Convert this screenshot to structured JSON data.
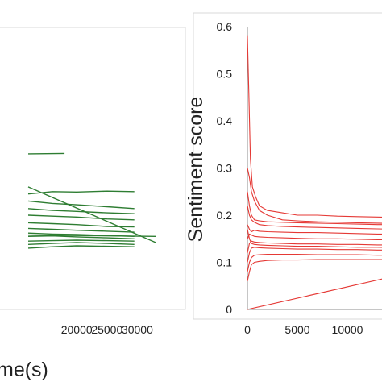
{
  "chart_data": [
    {
      "type": "line",
      "title": "",
      "xlabel": "me(s)",
      "ylabel": "",
      "xlim": [
        12000,
        33000
      ],
      "ylim": [
        0,
        0.6
      ],
      "x_ticks": [
        "20000",
        "25000",
        "30000"
      ],
      "grid": false,
      "color": "#2e7d32",
      "series": [
        {
          "x": [
            12000,
            18000
          ],
          "values": [
            0.33,
            0.331
          ]
        },
        {
          "x": [
            12000,
            16000,
            20000,
            25000,
            29500
          ],
          "values": [
            0.245,
            0.25,
            0.249,
            0.251,
            0.25
          ]
        },
        {
          "x": [
            12000,
            16000,
            20000,
            25000,
            29500
          ],
          "values": [
            0.23,
            0.225,
            0.222,
            0.218,
            0.214
          ]
        },
        {
          "x": [
            12000,
            16000,
            20000,
            25000,
            29500
          ],
          "values": [
            0.214,
            0.21,
            0.208,
            0.205,
            0.203
          ]
        },
        {
          "x": [
            12000,
            16000,
            20000,
            25000,
            29500
          ],
          "values": [
            0.2,
            0.198,
            0.196,
            0.192,
            0.19
          ]
        },
        {
          "x": [
            12000,
            16000,
            20000,
            25000,
            29500
          ],
          "values": [
            0.184,
            0.182,
            0.18,
            0.176,
            0.175
          ]
        },
        {
          "x": [
            12000,
            16000,
            20000,
            25000,
            29500
          ],
          "values": [
            0.172,
            0.17,
            0.168,
            0.166,
            0.164
          ]
        },
        {
          "x": [
            12000,
            16000,
            20000,
            25000,
            29500
          ],
          "values": [
            0.162,
            0.16,
            0.159,
            0.157,
            0.155
          ]
        },
        {
          "x": [
            12000,
            16000,
            20000,
            25000,
            29500
          ],
          "values": [
            0.155,
            0.156,
            0.154,
            0.152,
            0.15
          ]
        },
        {
          "x": [
            12000,
            16000,
            20000,
            25000,
            29500
          ],
          "values": [
            0.145,
            0.146,
            0.147,
            0.146,
            0.145
          ]
        },
        {
          "x": [
            12000,
            16000,
            20000,
            25000,
            29500
          ],
          "values": [
            0.138,
            0.14,
            0.142,
            0.14,
            0.138
          ]
        },
        {
          "x": [
            12000,
            16000,
            20000,
            25000,
            29500
          ],
          "values": [
            0.13,
            0.133,
            0.135,
            0.134,
            0.133
          ]
        },
        {
          "x": [
            12000,
            33000
          ],
          "values": [
            0.26,
            0.142
          ]
        },
        {
          "x": [
            12000,
            33000
          ],
          "values": [
            0.158,
            0.155
          ]
        }
      ]
    },
    {
      "type": "line",
      "title": "",
      "xlabel": "",
      "ylabel": "Sentiment score",
      "xlim": [
        0,
        15000
      ],
      "ylim": [
        0,
        0.6
      ],
      "x_ticks": [
        "0",
        "5000",
        "10000"
      ],
      "y_ticks": [
        "0",
        "0.1",
        "0.2",
        "0.3",
        "0.4",
        "0.5",
        "0.6"
      ],
      "grid": false,
      "color": "#e53935",
      "series": [
        {
          "x": [
            0,
            150,
            300,
            500,
            800,
            1200,
            2000,
            3500,
            5000,
            7000,
            9000,
            11000,
            13000,
            15000
          ],
          "values": [
            0.58,
            0.45,
            0.32,
            0.26,
            0.24,
            0.22,
            0.21,
            0.205,
            0.2,
            0.2,
            0.198,
            0.197,
            0.196,
            0.195
          ]
        },
        {
          "x": [
            0,
            200,
            400,
            700,
            1200,
            2000,
            3500,
            5000,
            7000,
            9000,
            11000,
            13000,
            15000
          ],
          "values": [
            0.3,
            0.28,
            0.25,
            0.23,
            0.21,
            0.2,
            0.19,
            0.188,
            0.186,
            0.185,
            0.184,
            0.183,
            0.182
          ]
        },
        {
          "x": [
            0,
            200,
            400,
            700,
            1200,
            2000,
            3500,
            5000,
            7000,
            9000,
            11000,
            13000,
            15000
          ],
          "values": [
            0.22,
            0.2,
            0.19,
            0.185,
            0.18,
            0.178,
            0.176,
            0.175,
            0.174,
            0.173,
            0.172,
            0.171,
            0.17
          ]
        },
        {
          "x": [
            0,
            200,
            400,
            700,
            1200,
            2000,
            3500,
            5000,
            7000,
            9000,
            11000,
            13000,
            15000
          ],
          "values": [
            0.18,
            0.17,
            0.165,
            0.168,
            0.166,
            0.165,
            0.164,
            0.163,
            0.163,
            0.162,
            0.161,
            0.16,
            0.16
          ]
        },
        {
          "x": [
            0,
            200,
            400,
            700,
            1200,
            2000,
            3500,
            5000,
            7000,
            9000,
            11000,
            13000,
            15000
          ],
          "values": [
            0.15,
            0.16,
            0.158,
            0.155,
            0.154,
            0.153,
            0.152,
            0.151,
            0.15,
            0.15,
            0.149,
            0.148,
            0.148
          ]
        },
        {
          "x": [
            0,
            200,
            400,
            700,
            1200,
            2000,
            3500,
            5000,
            7000,
            9000,
            11000,
            13000,
            15000
          ],
          "values": [
            0.12,
            0.14,
            0.145,
            0.143,
            0.142,
            0.141,
            0.14,
            0.139,
            0.139,
            0.138,
            0.138,
            0.137,
            0.137
          ]
        },
        {
          "x": [
            0,
            200,
            400,
            700,
            1200,
            2000,
            3500,
            5000,
            7000,
            9000,
            11000,
            13000,
            15000
          ],
          "values": [
            0.1,
            0.12,
            0.13,
            0.132,
            0.131,
            0.13,
            0.129,
            0.128,
            0.128,
            0.127,
            0.127,
            0.126,
            0.126
          ]
        },
        {
          "x": [
            0,
            200,
            400,
            700,
            1200,
            2000,
            3500,
            5000,
            7000,
            9000,
            11000,
            13000,
            15000
          ],
          "values": [
            0.08,
            0.1,
            0.11,
            0.115,
            0.116,
            0.117,
            0.117,
            0.117,
            0.116,
            0.116,
            0.116,
            0.115,
            0.115
          ]
        },
        {
          "x": [
            0,
            200,
            400,
            700,
            1200,
            2000,
            3500,
            5000,
            7000,
            9000,
            11000,
            13000,
            15000
          ],
          "values": [
            0.06,
            0.08,
            0.095,
            0.1,
            0.102,
            0.104,
            0.105,
            0.105,
            0.106,
            0.106,
            0.106,
            0.106,
            0.106
          ]
        },
        {
          "x": [
            0,
            200,
            400,
            700,
            1200,
            2000,
            3500,
            5000,
            7000,
            9000,
            11000,
            13000,
            15000
          ],
          "values": [
            0.25,
            0.22,
            0.2,
            0.19,
            0.188,
            0.186,
            0.185,
            0.184,
            0.183,
            0.182,
            0.181,
            0.18,
            0.18
          ]
        },
        {
          "x": [
            0,
            200,
            400,
            700,
            1200,
            2000,
            3500,
            5000,
            7000,
            9000,
            11000,
            13000,
            15000
          ],
          "values": [
            0.17,
            0.15,
            0.14,
            0.138,
            0.137,
            0.136,
            0.135,
            0.134,
            0.134,
            0.133,
            0.132,
            0.132,
            0.131
          ]
        },
        {
          "x": [
            0,
            15000
          ],
          "values": [
            0.0,
            0.072
          ]
        }
      ]
    }
  ]
}
